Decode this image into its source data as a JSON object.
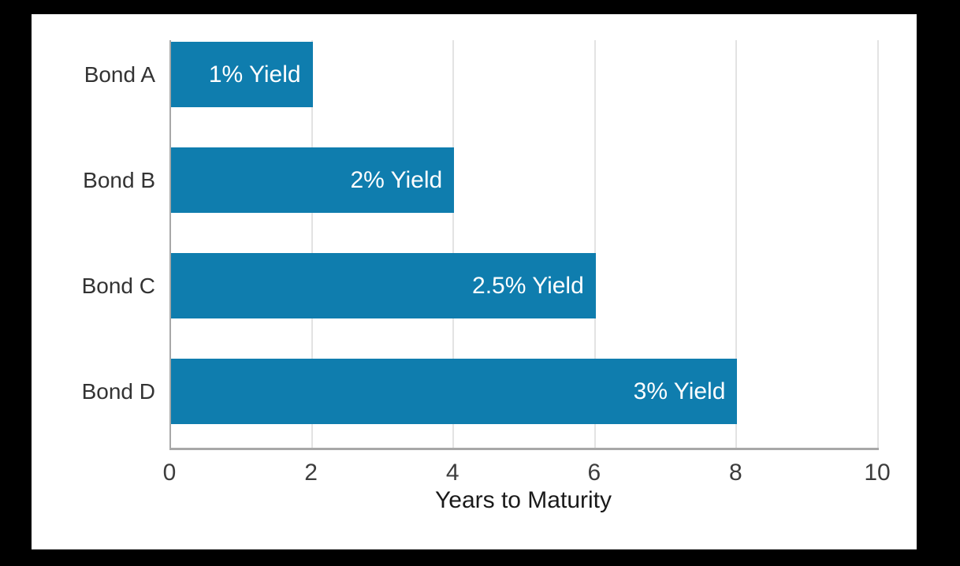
{
  "chart_data": {
    "type": "bar",
    "orientation": "horizontal",
    "title": "",
    "categories": [
      "Bond A",
      "Bond B",
      "Bond C",
      "Bond D"
    ],
    "values": [
      2,
      4,
      6,
      8
    ],
    "bar_labels": [
      "1% Yield",
      "2% Yield",
      "2.5% Yield",
      "3% Yield"
    ],
    "xlabel": "Years to Maturity",
    "ylabel": "",
    "x_ticks": [
      "0",
      "2",
      "4",
      "6",
      "8",
      "10"
    ],
    "x_tick_values": [
      0,
      2,
      4,
      6,
      8,
      10
    ],
    "xlim": [
      0,
      10
    ],
    "grid": "vertical",
    "legend": "none",
    "colors": {
      "bar": "#0f7dae",
      "bar_label_text": "#ffffff",
      "axis_line": "#a8a8a8",
      "gridline": "#e3e3e3",
      "tick_label": "#3d3d3d",
      "category_label": "#333333",
      "axis_title_text": "#1a1a1a",
      "panel_background": "#ffffff",
      "outer_background": "#000000"
    }
  }
}
